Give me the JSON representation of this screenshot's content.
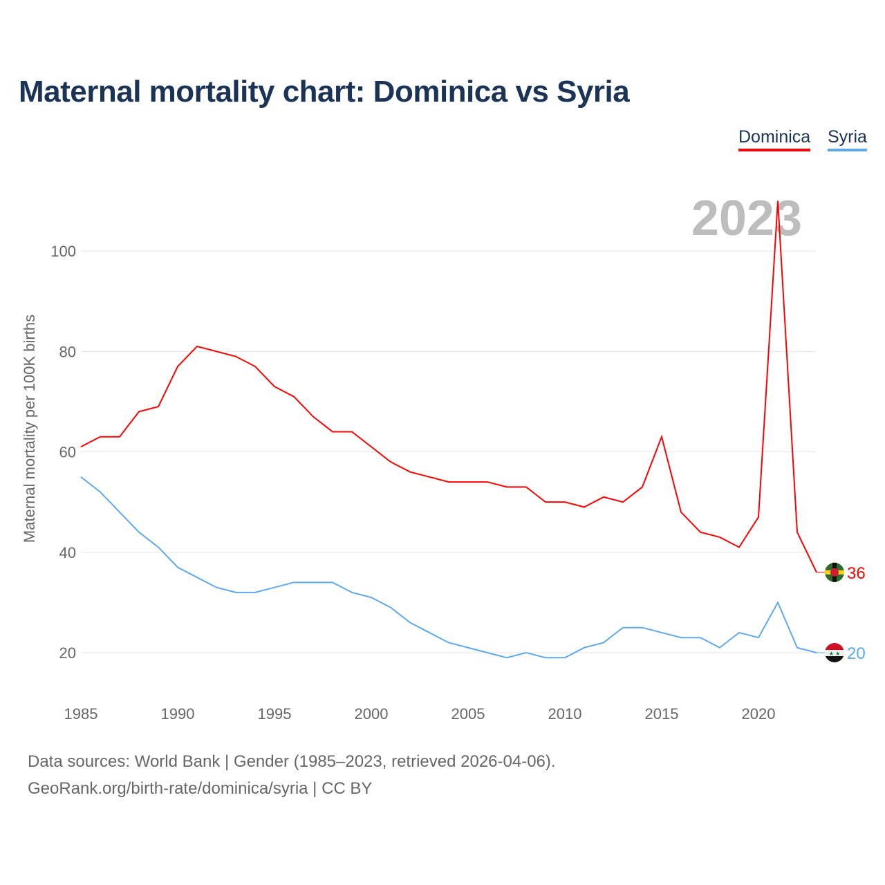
{
  "title": "Maternal mortality chart: Dominica vs Syria",
  "year_label": "2023",
  "footer": {
    "line1": "Data sources: World Bank | Gender (1985–2023, retrieved 2026-04-06).",
    "line2": "GeoRank.org/birth-rate/dominica/syria | CC BY"
  },
  "chart_data": {
    "type": "line",
    "title": "Maternal mortality chart: Dominica vs Syria",
    "xlabel": "",
    "ylabel": "Maternal mortality per 100K births",
    "x": [
      1985,
      1986,
      1987,
      1988,
      1989,
      1990,
      1991,
      1992,
      1993,
      1994,
      1995,
      1996,
      1997,
      1998,
      1999,
      2000,
      2001,
      2002,
      2003,
      2004,
      2005,
      2006,
      2007,
      2008,
      2009,
      2010,
      2011,
      2012,
      2013,
      2014,
      2015,
      2016,
      2017,
      2018,
      2019,
      2020,
      2021,
      2022,
      2023
    ],
    "xticks": [
      "1985",
      "1990",
      "1995",
      "2000",
      "2005",
      "2010",
      "2015",
      "2020"
    ],
    "yticks": [
      "20",
      "40",
      "60",
      "80",
      "100"
    ],
    "ylim": [
      10,
      110
    ],
    "grid": true,
    "legend": "top-right",
    "series": [
      {
        "name": "Dominica",
        "color": "#ff0000",
        "end_label": "36",
        "values": [
          61,
          63,
          63,
          68,
          69,
          77,
          81,
          80,
          79,
          77,
          73,
          71,
          67,
          64,
          64,
          61,
          58,
          56,
          55,
          54,
          54,
          54,
          53,
          53,
          50,
          50,
          49,
          51,
          50,
          53,
          63,
          48,
          44,
          43,
          41,
          47,
          110,
          44,
          36
        ]
      },
      {
        "name": "Syria",
        "color": "#5ea8f0",
        "end_label": "20",
        "values": [
          55,
          52,
          48,
          44,
          41,
          37,
          35,
          33,
          32,
          32,
          33,
          34,
          34,
          34,
          32,
          31,
          29,
          26,
          24,
          22,
          21,
          20,
          19,
          20,
          19,
          19,
          21,
          22,
          25,
          25,
          24,
          23,
          23,
          21,
          24,
          23,
          30,
          21,
          20
        ]
      }
    ]
  }
}
